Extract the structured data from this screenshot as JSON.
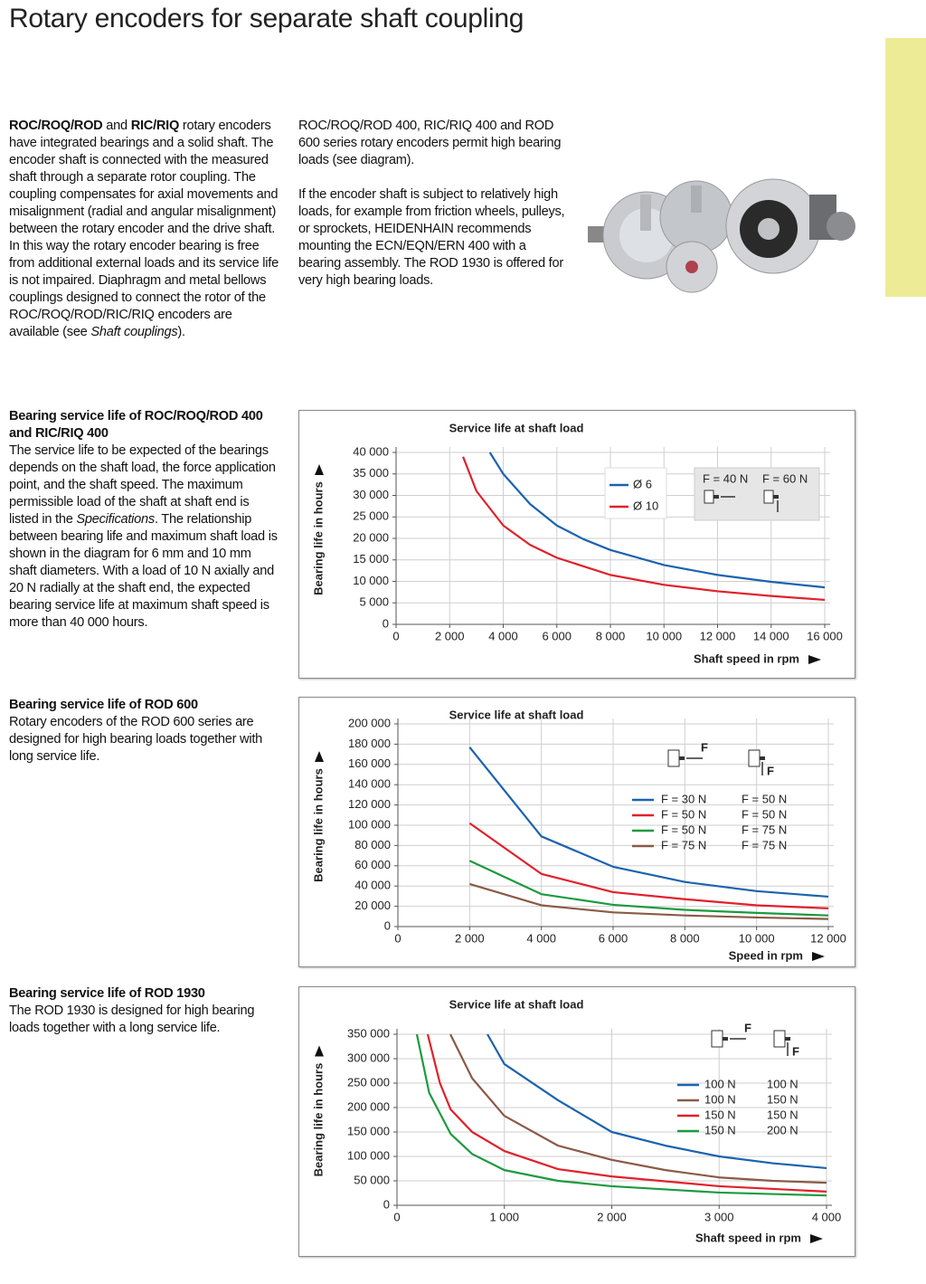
{
  "title": "Rotary encoders for separate shaft coupling",
  "intro": {
    "left": [
      {
        "text": "ROC/ROQ/ROD",
        "style": "bold"
      },
      {
        "text": " and "
      },
      {
        "text": "RIC/RIQ",
        "style": "bold"
      },
      {
        "text": " rotary encoders have integrated bearings and a solid shaft. The encoder shaft is connected with the measured shaft through a separate rotor coupling. The coupling compensates for axial movements and misalignment (radial and angular misalignment) between the rotary encoder and the drive shaft. In this way the rotary encoder bearing is free from additional external loads and its service life is not impaired. Diaphragm and metal bellows couplings designed to connect the rotor of the ROC/ROQ/ROD/RIC/RIQ encoders are available (see "
      },
      {
        "text": "Shaft couplings",
        "style": "italic"
      },
      {
        "text": ")."
      }
    ],
    "right": [
      [
        {
          "text": "ROC/ROQ/ROD 400, RIC/RIQ 400 and ROD 600 series rotary encoders permit high bearing loads (see diagram)."
        }
      ],
      [
        {
          "text": "If the encoder shaft is subject to relatively high loads, for example from friction wheels, pulleys, or sprockets, HEIDENHAIN recommends mounting the ECN/EQN/ERN 400 with a bearing assembly. The ROD 1930 is offered for very high bearing loads."
        }
      ]
    ]
  },
  "sections": [
    {
      "heading": "Bearing service life of ROC/ROQ/ROD 400 and RIC/RIQ 400",
      "body": [
        {
          "text": "The service life to be expected of the bearings depends on the shaft load, the force application point, and the shaft speed. The maximum permissible load of the shaft at shaft end is listed in the "
        },
        {
          "text": "Specifications",
          "style": "italic"
        },
        {
          "text": ". The relationship between bearing life and maximum shaft load is shown in the diagram for 6 mm and 10 mm shaft diameters. With a load of 10 N axially and 20 N radially at the shaft end, the expected bearing service life at maximum shaft speed is more than 40 000 hours."
        }
      ]
    },
    {
      "heading": "Bearing service life of ROD 600",
      "body": [
        {
          "text": "Rotary encoders of the ROD 600 series are designed for high bearing loads together with long service life."
        }
      ]
    },
    {
      "heading": "Bearing service life of ROD 1930",
      "body": [
        {
          "text": "The ROD 1930 is designed for high bearing loads together with a long service life."
        }
      ]
    }
  ],
  "chart_data": [
    {
      "type": "line",
      "title": "Service life at shaft load",
      "x_label": "Shaft speed in rpm",
      "y_label": "Bearing life in hours",
      "xlim": [
        0,
        16000
      ],
      "xticks": [
        0,
        {
          "value": 2000,
          "label": "2 000"
        },
        {
          "value": 4000,
          "label": "4 000"
        },
        {
          "value": 6000,
          "label": "6 000"
        },
        {
          "value": 8000,
          "label": "8 000"
        },
        {
          "value": 10000,
          "label": "10 000"
        },
        {
          "value": 12000,
          "label": "12 000"
        },
        {
          "value": 14000,
          "label": "14 000"
        },
        {
          "value": 16000,
          "label": "16 000"
        }
      ],
      "ylim": [
        0,
        40000
      ],
      "yticks": [
        0,
        {
          "value": 5000,
          "label": "5 000"
        },
        {
          "value": 10000,
          "label": "10 000"
        },
        {
          "value": 15000,
          "label": "15 000"
        },
        {
          "value": 20000,
          "label": "20 000"
        },
        {
          "value": 25000,
          "label": "25 000"
        },
        {
          "value": 30000,
          "label": "30 000"
        },
        {
          "value": 35000,
          "label": "35 000"
        },
        {
          "value": 40000,
          "label": "40 000"
        }
      ],
      "grid": true,
      "load_cases": [
        "F = 40 N",
        "F = 60 N"
      ],
      "series": [
        {
          "name": "Ø 6",
          "color": "#1b63ae",
          "x": [
            3500,
            4000,
            5000,
            6000,
            7000,
            8000,
            10000,
            12000,
            14000,
            16000
          ],
          "values": [
            40000,
            35000,
            28000,
            23000,
            19800,
            17300,
            13800,
            11500,
            9900,
            8600
          ]
        },
        {
          "name": "Ø 10",
          "color": "#e0212b",
          "x": [
            2500,
            3000,
            4000,
            5000,
            6000,
            8000,
            10000,
            12000,
            14000,
            16000
          ],
          "values": [
            39000,
            31000,
            23000,
            18500,
            15500,
            11500,
            9200,
            7700,
            6600,
            5700
          ]
        }
      ]
    },
    {
      "type": "line",
      "title": "Service life at shaft load",
      "x_label": "Speed in rpm",
      "y_label": "Bearing life in hours",
      "force_label": "F",
      "xlim": [
        0,
        12000
      ],
      "xticks": [
        0,
        {
          "value": 2000,
          "label": "2 000"
        },
        {
          "value": 4000,
          "label": "4 000"
        },
        {
          "value": 6000,
          "label": "6 000"
        },
        {
          "value": 8000,
          "label": "8 000"
        },
        {
          "value": 10000,
          "label": "10 000"
        },
        {
          "value": 12000,
          "label": "12 000"
        }
      ],
      "ylim": [
        0,
        200000
      ],
      "yticks": [
        0,
        {
          "value": 20000,
          "label": "20 000"
        },
        {
          "value": 40000,
          "label": "40 000"
        },
        {
          "value": 60000,
          "label": "60 000"
        },
        {
          "value": 80000,
          "label": "80 000"
        },
        {
          "value": 100000,
          "label": "100 000"
        },
        {
          "value": 120000,
          "label": "120 000"
        },
        {
          "value": 140000,
          "label": "140 000"
        },
        {
          "value": 160000,
          "label": "160 000"
        },
        {
          "value": 180000,
          "label": "180 000"
        },
        {
          "value": 200000,
          "label": "200 000"
        }
      ],
      "grid": true,
      "x": [
        2000,
        4000,
        6000,
        8000,
        10000,
        12000
      ],
      "series": [
        {
          "name": "F = 30 N",
          "name2": "F = 50 N",
          "color": "#1b63ae",
          "values": [
            177000,
            89000,
            59000,
            44000,
            35000,
            29500
          ]
        },
        {
          "name": "F = 50 N",
          "name2": "F = 50 N",
          "color": "#e0212b",
          "values": [
            102000,
            52000,
            34000,
            27000,
            21000,
            18000
          ]
        },
        {
          "name": "F = 50 N",
          "name2": "F = 75 N",
          "color": "#1c9a40",
          "values": [
            65000,
            32000,
            21500,
            16500,
            13500,
            11000
          ]
        },
        {
          "name": "F = 75 N",
          "name2": "F = 75 N",
          "color": "#8b5a46",
          "values": [
            42000,
            21000,
            14000,
            11000,
            9000,
            7500
          ]
        }
      ]
    },
    {
      "type": "line",
      "title": "Service life at shaft load",
      "x_label": "Shaft speed in rpm",
      "y_label": "Bearing life in hours",
      "force_label": "F",
      "xlim": [
        0,
        4000
      ],
      "xticks": [
        0,
        {
          "value": 1000,
          "label": "1 000"
        },
        {
          "value": 2000,
          "label": "2 000"
        },
        {
          "value": 3000,
          "label": "3 000"
        },
        {
          "value": 4000,
          "label": "4 000"
        }
      ],
      "ylim": [
        0,
        350000
      ],
      "yticks": [
        0,
        {
          "value": 50000,
          "label": "50 000"
        },
        {
          "value": 100000,
          "label": "100 000"
        },
        {
          "value": 150000,
          "label": "150 000"
        },
        {
          "value": 200000,
          "label": "200 000"
        },
        {
          "value": 250000,
          "label": "250 000"
        },
        {
          "value": 300000,
          "label": "300 000"
        },
        {
          "value": 350000,
          "label": "350 000"
        }
      ],
      "grid": true,
      "series": [
        {
          "name": "100 N",
          "name2": "100 N",
          "color": "#1b63ae",
          "x": [
            842,
            1000,
            1500,
            2000,
            2500,
            3000,
            3500,
            4000
          ],
          "values": [
            350000,
            289000,
            215000,
            150000,
            122000,
            100000,
            86000,
            76000
          ]
        },
        {
          "name": "100 N",
          "name2": "150 N",
          "color": "#8b5a46",
          "x": [
            497,
            700,
            1000,
            1500,
            2000,
            2500,
            3000,
            3500,
            4000
          ],
          "values": [
            350000,
            260000,
            183000,
            122000,
            93000,
            72000,
            57000,
            50000,
            46000
          ]
        },
        {
          "name": "150 N",
          "name2": "150 N",
          "color": "#e0212b",
          "x": [
            286,
            400,
            500,
            700,
            1000,
            1500,
            2000,
            3000,
            4000
          ],
          "values": [
            350000,
            250000,
            196000,
            150000,
            111000,
            74000,
            59000,
            39000,
            28000
          ]
        },
        {
          "name": "150 N",
          "name2": "200 N",
          "color": "#1c9a40",
          "x": [
            185,
            300,
            500,
            700,
            1000,
            1500,
            2000,
            3000,
            4000
          ],
          "values": [
            350000,
            230000,
            146000,
            105000,
            72000,
            50000,
            39000,
            26000,
            20000
          ]
        }
      ]
    }
  ]
}
